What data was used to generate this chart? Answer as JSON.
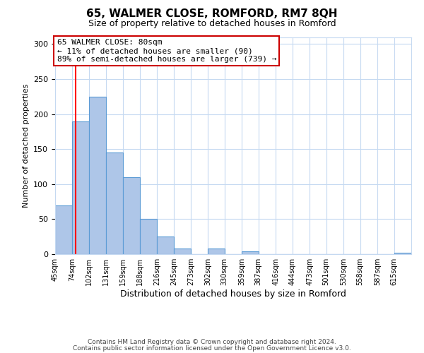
{
  "title": "65, WALMER CLOSE, ROMFORD, RM7 8QH",
  "subtitle": "Size of property relative to detached houses in Romford",
  "xlabel": "Distribution of detached houses by size in Romford",
  "ylabel": "Number of detached properties",
  "bin_labels": [
    "45sqm",
    "74sqm",
    "102sqm",
    "131sqm",
    "159sqm",
    "188sqm",
    "216sqm",
    "245sqm",
    "273sqm",
    "302sqm",
    "330sqm",
    "359sqm",
    "387sqm",
    "416sqm",
    "444sqm",
    "473sqm",
    "501sqm",
    "530sqm",
    "558sqm",
    "587sqm",
    "615sqm"
  ],
  "bin_edges": [
    45,
    74,
    102,
    131,
    159,
    188,
    216,
    245,
    273,
    302,
    330,
    359,
    387,
    416,
    444,
    473,
    501,
    530,
    558,
    587,
    615,
    644
  ],
  "bar_values": [
    70,
    190,
    225,
    145,
    110,
    50,
    25,
    8,
    0,
    8,
    0,
    4,
    0,
    0,
    0,
    0,
    0,
    0,
    0,
    0,
    2
  ],
  "bar_color": "#aec6e8",
  "bar_edge_color": "#5b9bd5",
  "grid_color": "#c5d9f1",
  "background_color": "#ffffff",
  "red_line_x": 80,
  "annotation_text": "65 WALMER CLOSE: 80sqm\n← 11% of detached houses are smaller (90)\n89% of semi-detached houses are larger (739) →",
  "annotation_box_color": "#ffffff",
  "annotation_box_edge": "#cc0000",
  "ylim": [
    0,
    310
  ],
  "yticks": [
    0,
    50,
    100,
    150,
    200,
    250,
    300
  ],
  "footer_line1": "Contains HM Land Registry data © Crown copyright and database right 2024.",
  "footer_line2": "Contains public sector information licensed under the Open Government Licence v3.0."
}
